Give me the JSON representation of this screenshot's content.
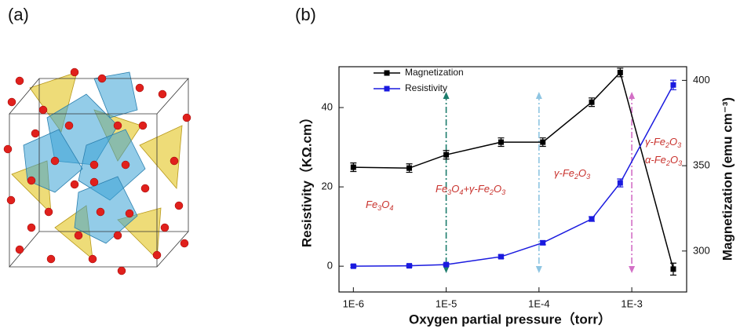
{
  "panel_a": {
    "label": "(a)"
  },
  "chart_data": {
    "type": "line",
    "panel_label": "(b)",
    "x_label": "Oxygen partial pressure（torr）",
    "y_label": "Resistivity（KΩ.cm）",
    "y2_label": "Magnetization (emu cm⁻³)",
    "x": [
      1e-06,
      4e-06,
      1e-05,
      3.9e-05,
      0.00011,
      0.00037,
      0.00075,
      0.0028
    ],
    "xlim": [
      7e-07,
      0.0039
    ],
    "x_log": true,
    "xticks": [
      {
        "value": 1e-06,
        "label": "1E-6"
      },
      {
        "value": 1e-05,
        "label": "1E-5"
      },
      {
        "value": 0.0001,
        "label": "1E-4"
      },
      {
        "value": 0.001,
        "label": "1E-3"
      }
    ],
    "ylim": [
      -6.5,
      50.3
    ],
    "yticks": [
      0,
      20,
      40
    ],
    "y2lim": [
      276,
      408
    ],
    "y2ticks": [
      300,
      350,
      400
    ],
    "series": [
      {
        "name": "Magnetization",
        "color": "#000000",
        "axis": "y2",
        "values": [
          349.1,
          348.6,
          356.4,
          363.8,
          363.8,
          387.2,
          404.6,
          289.4
        ],
        "errors": [
          2.5,
          2.5,
          2.5,
          2.5,
          2.5,
          2.5,
          2.5,
          3.5
        ]
      },
      {
        "name": "Resistivity",
        "color": "#1a1adf",
        "values": [
          0.0,
          0.1,
          0.4,
          2.4,
          5.9,
          11.9,
          21.0,
          45.7
        ],
        "errors": [
          0.3,
          0.3,
          0.3,
          0.4,
          0.5,
          0.6,
          1.0,
          1.2
        ]
      }
    ],
    "phase_boundaries": {
      "x": [
        1e-05,
        0.0001,
        0.001
      ],
      "colors": [
        "#1c7c6c",
        "#8ec5e2",
        "#d36fc6"
      ]
    },
    "annotations": [
      "Fe3O4",
      "Fe3O4+γ-Fe2O3",
      "γ-Fe2O3",
      "γ-Fe2O3",
      "α-Fe2O3"
    ],
    "legend": "upper left"
  }
}
